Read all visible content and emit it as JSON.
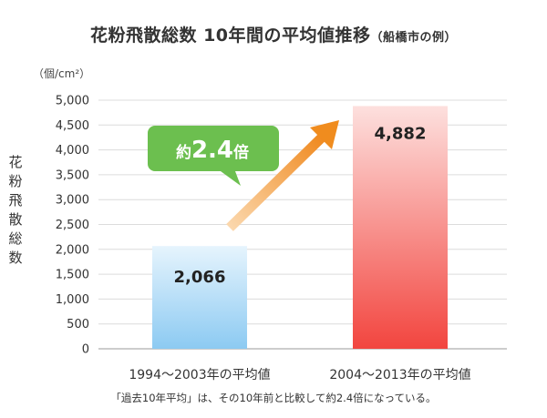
{
  "chart_data": {
    "type": "bar",
    "title": "花粉飛散総数 10年間の平均値推移",
    "subtitle": "（船橋市の例）",
    "unit_label": "（個/cm²）",
    "ylabel": "花粉飛散総数",
    "categories": [
      "1994〜2003年の平均値",
      "2004〜2013年の平均値"
    ],
    "values": [
      2066,
      4882
    ],
    "value_labels": [
      "2,066",
      "4,882"
    ],
    "ylim": [
      0,
      5000
    ],
    "yticks": [
      0,
      500,
      1000,
      1500,
      2000,
      2500,
      3000,
      3500,
      4000,
      4500,
      5000
    ],
    "ytick_labels": [
      "0",
      "500",
      "1,000",
      "1,500",
      "2,000",
      "2,500",
      "3,000",
      "3,500",
      "4,000",
      "4,500",
      "5,000"
    ],
    "grid": true,
    "bar_colors": [
      "#a9d6f5",
      "#f4524d"
    ],
    "annotation": {
      "prefix": "約",
      "value": "2.4",
      "suffix": "倍",
      "color": "#6cbf4f",
      "arrow_color": "#f08c1e"
    },
    "footnote": "「過去10年平均」は、その10年前と比較して約2.4倍になっている。"
  }
}
